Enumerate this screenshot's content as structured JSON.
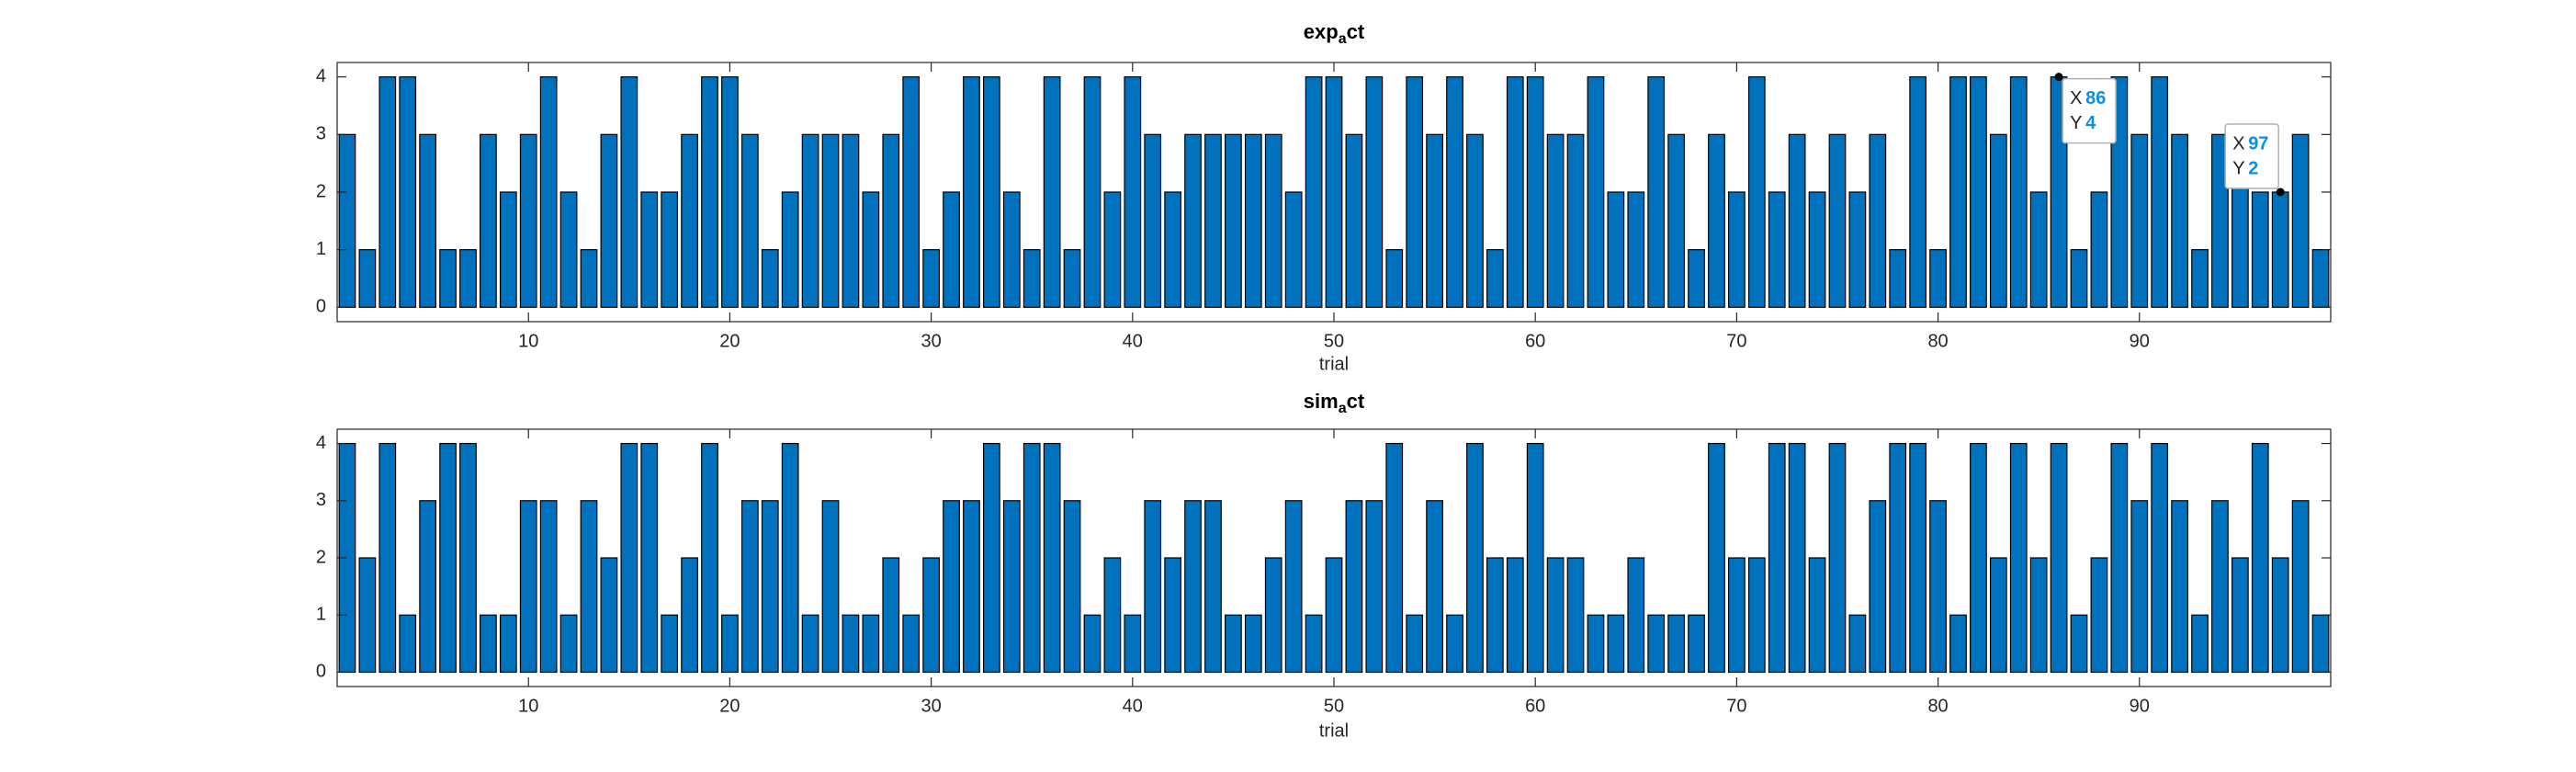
{
  "chart_data": [
    {
      "type": "bar",
      "title": "exp_act",
      "xlabel": "trial",
      "x": [
        1,
        2,
        3,
        4,
        5,
        6,
        7,
        8,
        9,
        10,
        11,
        12,
        13,
        14,
        15,
        16,
        17,
        18,
        19,
        20,
        21,
        22,
        23,
        24,
        25,
        26,
        27,
        28,
        29,
        30,
        31,
        32,
        33,
        34,
        35,
        36,
        37,
        38,
        39,
        40,
        41,
        42,
        43,
        44,
        45,
        46,
        47,
        48,
        49,
        50,
        51,
        52,
        53,
        54,
        55,
        56,
        57,
        58,
        59,
        60,
        61,
        62,
        63,
        64,
        65,
        66,
        67,
        68,
        69,
        70,
        71,
        72,
        73,
        74,
        75,
        76,
        77,
        78,
        79,
        80,
        81,
        82,
        83,
        84,
        85,
        86,
        87,
        88,
        89,
        90,
        91,
        92,
        93,
        94,
        95,
        96,
        97,
        98,
        99
      ],
      "values": [
        3,
        1,
        4,
        4,
        3,
        1,
        1,
        3,
        2,
        3,
        4,
        2,
        1,
        3,
        4,
        2,
        2,
        3,
        4,
        4,
        3,
        1,
        2,
        3,
        3,
        3,
        2,
        3,
        4,
        1,
        2,
        4,
        4,
        2,
        1,
        4,
        1,
        4,
        2,
        4,
        3,
        2,
        3,
        3,
        3,
        3,
        3,
        2,
        4,
        4,
        3,
        4,
        1,
        4,
        3,
        4,
        3,
        1,
        4,
        4,
        3,
        3,
        4,
        2,
        2,
        4,
        3,
        1,
        3,
        2,
        4,
        2,
        3,
        2,
        3,
        2,
        3,
        1,
        4,
        1,
        4,
        4,
        3,
        4,
        2,
        4,
        1,
        2,
        4,
        3,
        4,
        3,
        1,
        3,
        3,
        2,
        2,
        3,
        1
      ],
      "color": "#0072bd",
      "xlim": [
        0.5,
        99.5
      ],
      "ylim": [
        -0.25,
        4.25
      ],
      "xticks": [
        10,
        20,
        30,
        40,
        50,
        60,
        70,
        80,
        90
      ],
      "yticks": [
        0,
        1,
        2,
        3,
        4
      ],
      "datatips": [
        {
          "x_name": "X",
          "x": 86,
          "y_name": "Y",
          "y": 4
        },
        {
          "x_name": "X",
          "x": 97,
          "y_name": "Y",
          "y": 2
        }
      ]
    },
    {
      "type": "bar",
      "title": "sim_act",
      "xlabel": "trial",
      "x": [
        1,
        2,
        3,
        4,
        5,
        6,
        7,
        8,
        9,
        10,
        11,
        12,
        13,
        14,
        15,
        16,
        17,
        18,
        19,
        20,
        21,
        22,
        23,
        24,
        25,
        26,
        27,
        28,
        29,
        30,
        31,
        32,
        33,
        34,
        35,
        36,
        37,
        38,
        39,
        40,
        41,
        42,
        43,
        44,
        45,
        46,
        47,
        48,
        49,
        50,
        51,
        52,
        53,
        54,
        55,
        56,
        57,
        58,
        59,
        60,
        61,
        62,
        63,
        64,
        65,
        66,
        67,
        68,
        69,
        70,
        71,
        72,
        73,
        74,
        75,
        76,
        77,
        78,
        79,
        80,
        81,
        82,
        83,
        84,
        85,
        86,
        87,
        88,
        89,
        90,
        91,
        92,
        93,
        94,
        95,
        96,
        97,
        98,
        99
      ],
      "values": [
        4,
        2,
        4,
        1,
        3,
        4,
        4,
        1,
        1,
        3,
        3,
        1,
        3,
        2,
        4,
        4,
        1,
        2,
        4,
        1,
        3,
        3,
        4,
        1,
        3,
        1,
        1,
        2,
        1,
        2,
        3,
        3,
        4,
        3,
        4,
        4,
        3,
        1,
        2,
        1,
        3,
        2,
        3,
        3,
        1,
        1,
        2,
        3,
        1,
        2,
        3,
        3,
        4,
        1,
        3,
        1,
        4,
        2,
        2,
        4,
        2,
        2,
        1,
        1,
        2,
        1,
        1,
        1,
        4,
        2,
        2,
        4,
        4,
        2,
        4,
        1,
        3,
        4,
        4,
        3,
        1,
        4,
        2,
        4,
        2,
        4,
        1,
        2,
        4,
        3,
        4,
        3,
        1,
        3,
        2,
        4,
        2,
        3,
        1
      ],
      "color": "#0072bd",
      "xlim": [
        0.5,
        99.5
      ],
      "ylim": [
        -0.25,
        4.25
      ],
      "xticks": [
        10,
        20,
        30,
        40,
        50,
        60,
        70,
        80,
        90
      ],
      "yticks": [
        0,
        1,
        2,
        3,
        4
      ]
    }
  ]
}
